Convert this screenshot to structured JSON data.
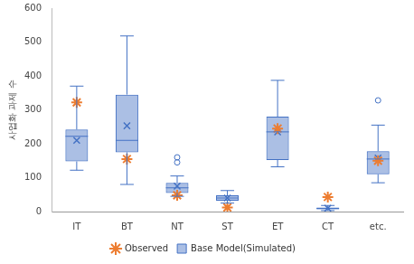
{
  "chart_data": {
    "type": "boxplot",
    "categories": [
      "IT",
      "BT",
      "NT",
      "ST",
      "ET",
      "CT",
      "etc."
    ],
    "y_label": "사업화 과제 수",
    "ylim": [
      0,
      600
    ],
    "yticks": [
      0,
      100,
      200,
      300,
      400,
      500,
      600
    ],
    "grid": false,
    "legend": "bottom",
    "series": [
      {
        "name": "Base Model(Simulated)",
        "type": "boxplot",
        "color": "#4472c4",
        "marker": "x",
        "boxes": [
          {
            "min": 122,
            "q1": 148,
            "median": 222,
            "q3": 242,
            "max": 370,
            "mean": 210,
            "outliers": []
          },
          {
            "min": 80,
            "q1": 175,
            "median": 210,
            "q3": 345,
            "max": 518,
            "mean": 253,
            "outliers": []
          },
          {
            "min": 45,
            "q1": 55,
            "median": 70,
            "q3": 85,
            "max": 105,
            "mean": 75,
            "outliers": [
              145,
              160
            ]
          },
          {
            "min": 25,
            "q1": 32,
            "median": 40,
            "q3": 48,
            "max": 62,
            "mean": 40,
            "outliers": []
          },
          {
            "min": 132,
            "q1": 152,
            "median": 235,
            "q3": 280,
            "max": 387,
            "mean": 235,
            "outliers": []
          },
          {
            "min": 3,
            "q1": 7,
            "median": 9,
            "q3": 12,
            "max": 18,
            "mean": 10,
            "outliers": []
          },
          {
            "min": 85,
            "q1": 110,
            "median": 155,
            "q3": 178,
            "max": 255,
            "mean": 158,
            "outliers": [
              328
            ]
          }
        ]
      },
      {
        "name": "Observed",
        "type": "scatter",
        "color": "#ed7d31",
        "marker": "star",
        "values": [
          322,
          155,
          48,
          12,
          245,
          43,
          150
        ]
      }
    ]
  }
}
